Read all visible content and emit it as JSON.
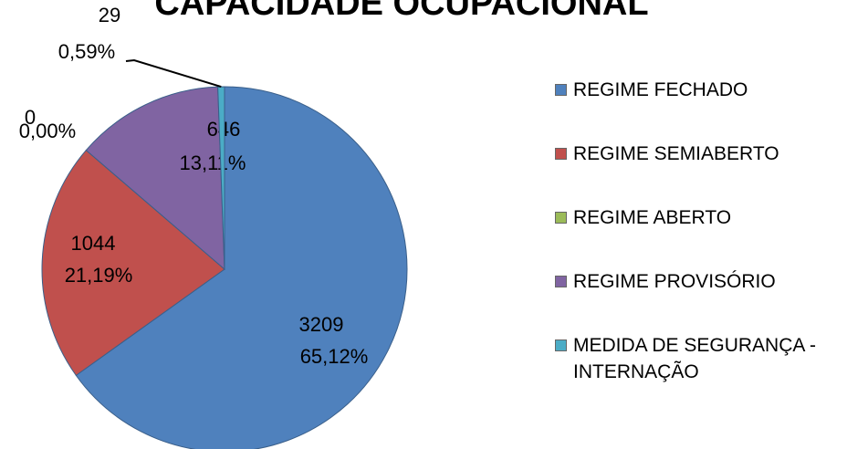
{
  "chart_data": {
    "type": "pie",
    "title": "CAPACIDADE OCUPACIONAL",
    "categories": [
      "REGIME FECHADO",
      "REGIME SEMIABERTO",
      "REGIME ABERTO",
      "REGIME PROVISÓRIO",
      "MEDIDA DE SEGURANÇA - INTERNAÇÃO"
    ],
    "values": [
      3209,
      1044,
      0,
      646,
      29
    ],
    "percentages": [
      65.12,
      21.19,
      0,
      13.11,
      0.59
    ],
    "percentage_labels": [
      "65,12%",
      "21,19%",
      "0,00%",
      "13,11%",
      "0,59%"
    ],
    "colors": [
      "#4f81bd",
      "#c0504d",
      "#9bbb59",
      "#8064a2",
      "#4bacc6"
    ],
    "legend": "right"
  }
}
